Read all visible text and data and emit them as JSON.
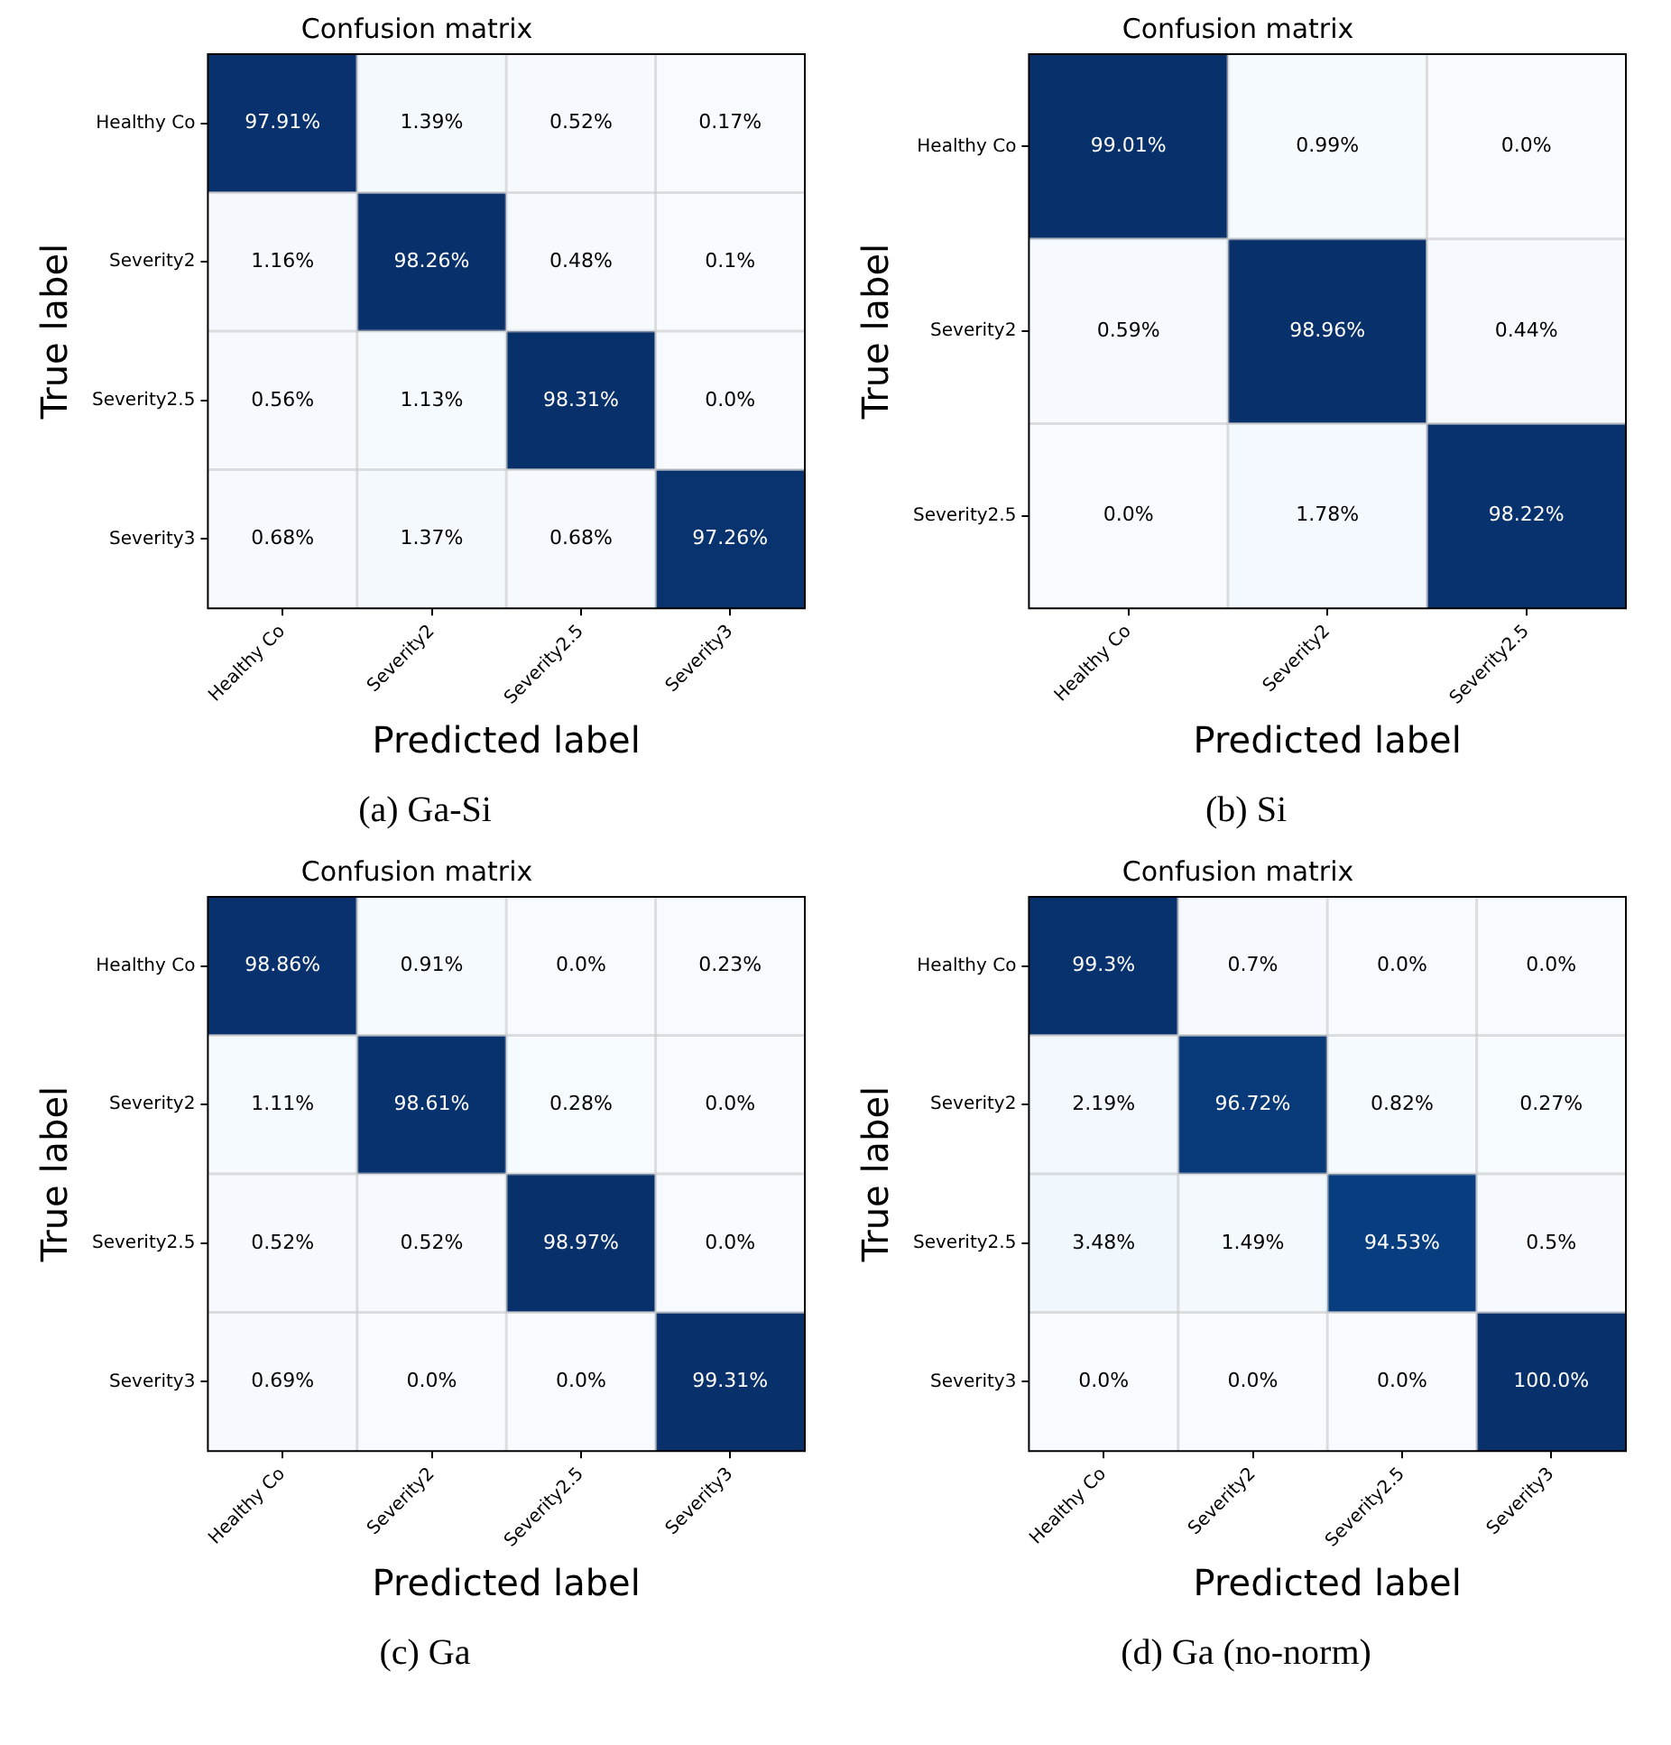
{
  "chart_data": [
    {
      "type": "heatmap",
      "title": "Confusion matrix",
      "xlabel": "Predicted label",
      "ylabel": "True label",
      "grid": true,
      "annotations": [
        "(a) Ga-Si"
      ],
      "categories": [
        "Healthy Co",
        "Severity2",
        "Severity2.5",
        "Severity3"
      ],
      "y_categories": [
        "Healthy Co",
        "Severity2",
        "Severity2.5",
        "Severity3"
      ],
      "cells": [
        [
          97.91,
          1.39,
          0.52,
          0.17
        ],
        [
          1.16,
          98.26,
          0.48,
          0.1
        ],
        [
          0.56,
          1.13,
          98.31,
          0
        ],
        [
          0.68,
          1.37,
          0.68,
          97.26
        ]
      ],
      "cell_labels": [
        [
          "97.91%",
          "1.39%",
          "0.52%",
          "0.17%"
        ],
        [
          "1.16%",
          "98.26%",
          "0.48%",
          "0.1%"
        ],
        [
          "0.56%",
          "1.13%",
          "98.31%",
          "0.0%"
        ],
        [
          "0.68%",
          "1.37%",
          "0.68%",
          "97.26%"
        ]
      ]
    },
    {
      "type": "heatmap",
      "title": "Confusion matrix",
      "xlabel": "Predicted label",
      "ylabel": "True label",
      "grid": true,
      "annotations": [
        "(b) Si"
      ],
      "categories": [
        "Healthy Co",
        "Severity2",
        "Severity2.5"
      ],
      "y_categories": [
        "Healthy Co",
        "Severity2",
        "Severity2.5"
      ],
      "cells": [
        [
          99.01,
          0.99,
          0
        ],
        [
          0.59,
          98.96,
          0.44
        ],
        [
          0,
          1.78,
          98.22
        ]
      ],
      "cell_labels": [
        [
          "99.01%",
          "0.99%",
          "0.0%"
        ],
        [
          "0.59%",
          "98.96%",
          "0.44%"
        ],
        [
          "0.0%",
          "1.78%",
          "98.22%"
        ]
      ]
    },
    {
      "type": "heatmap",
      "title": "Confusion matrix",
      "xlabel": "Predicted label",
      "ylabel": "True label",
      "grid": true,
      "annotations": [
        "(c) Ga"
      ],
      "categories": [
        "Healthy Co",
        "Severity2",
        "Severity2.5",
        "Severity3"
      ],
      "y_categories": [
        "Healthy Co",
        "Severity2",
        "Severity2.5",
        "Severity3"
      ],
      "cells": [
        [
          98.86,
          0.91,
          0,
          0.23
        ],
        [
          1.11,
          98.61,
          0.28,
          0
        ],
        [
          0.52,
          0.52,
          98.97,
          0
        ],
        [
          0.69,
          0,
          0,
          99.31
        ]
      ],
      "cell_labels": [
        [
          "98.86%",
          "0.91%",
          "0.0%",
          "0.23%"
        ],
        [
          "1.11%",
          "98.61%",
          "0.28%",
          "0.0%"
        ],
        [
          "0.52%",
          "0.52%",
          "98.97%",
          "0.0%"
        ],
        [
          "0.69%",
          "0.0%",
          "0.0%",
          "99.31%"
        ]
      ]
    },
    {
      "type": "heatmap",
      "title": "Confusion matrix",
      "xlabel": "Predicted label",
      "ylabel": "True label",
      "grid": true,
      "annotations": [
        "(d) Ga (no-norm)"
      ],
      "categories": [
        "Healthy Co",
        "Severity2",
        "Severity2.5",
        "Severity3"
      ],
      "y_categories": [
        "Healthy Co",
        "Severity2",
        "Severity2.5",
        "Severity3"
      ],
      "cells": [
        [
          99.3,
          0.7,
          0,
          0
        ],
        [
          2.19,
          96.72,
          0.82,
          0.27
        ],
        [
          3.48,
          1.49,
          94.53,
          0.5
        ],
        [
          0,
          0,
          0,
          100
        ]
      ],
      "cell_labels": [
        [
          "99.3%",
          "0.7%",
          "0.0%",
          "0.0%"
        ],
        [
          "2.19%",
          "96.72%",
          "0.82%",
          "0.27%"
        ],
        [
          "3.48%",
          "1.49%",
          "94.53%",
          "0.5%"
        ],
        [
          "0.0%",
          "0.0%",
          "0.0%",
          "100.0%"
        ]
      ]
    }
  ]
}
